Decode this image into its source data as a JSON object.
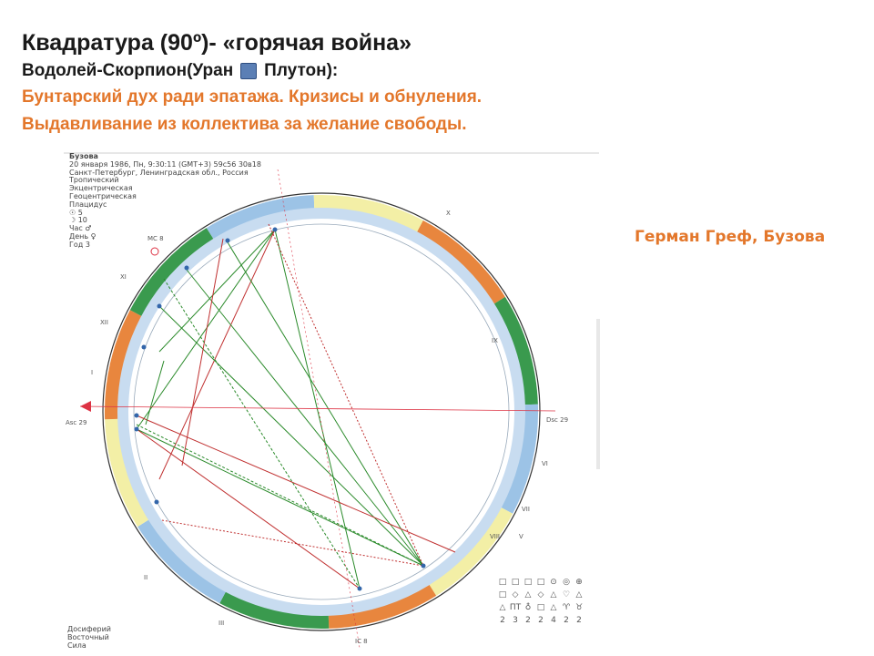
{
  "slide": {
    "title": "Квадратура (90º)- «горячая война»",
    "subtitle_left": "Водолей-Скорпион(Уран",
    "subtitle_right": "Плутон):",
    "line1": "Бунтарский дух ради эпатажа. Кризисы и обнуления.",
    "line2": "Выдавливание из коллектива за желание свободы.",
    "people": "Герман Греф, Бузова"
  },
  "chart": {
    "info": [
      "Бузова",
      "20 января 1986, Пн, 9:30:11 (GMT+3) 59с56 30в18",
      "Санкт-Петербург, Ленинградская обл., Россия",
      "Тропический",
      "Экцентрическая",
      "Геоцентрическая",
      "Плацидус",
      "☉ 5",
      "☽ 10",
      "Час ♂",
      "День ♀",
      "Год 3"
    ],
    "bottom_labels": [
      "Досиферий",
      "Восточный",
      "Сила"
    ],
    "house_labels": [
      "Asc 29",
      "Dsc 29",
      "MC 8",
      "IC 8",
      "XI",
      "XII",
      "II",
      "III",
      "V",
      "VI",
      "VII",
      "VIII",
      "IX",
      "X",
      "I"
    ],
    "symbol_grid": [
      "□",
      "□",
      "□",
      "□",
      "⊙",
      "◎",
      "⊕",
      "□",
      "◇",
      "△",
      "◇",
      "△",
      "♡",
      "△",
      "△",
      "ПТ",
      "♁",
      "□",
      "△",
      "♈",
      "♉",
      "2",
      "3",
      "2",
      "2",
      "4",
      "2",
      "2"
    ]
  }
}
